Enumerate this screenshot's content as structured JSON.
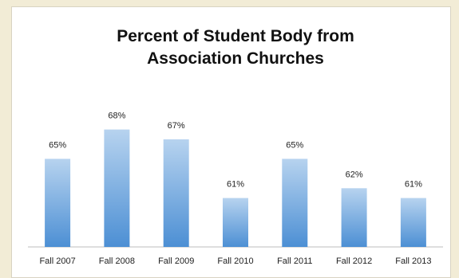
{
  "chart_data": {
    "type": "bar",
    "title": "Percent of Student Body from Association Churches",
    "title_lines": [
      "Percent of Student Body from",
      "Association Churches"
    ],
    "categories": [
      "Fall 2007",
      "Fall 2008",
      "Fall 2009",
      "Fall 2010",
      "Fall 2011",
      "Fall 2012",
      "Fall 2013"
    ],
    "values": [
      65,
      68,
      67,
      61,
      65,
      62,
      61
    ],
    "data_labels": [
      "65%",
      "68%",
      "67%",
      "61%",
      "65%",
      "62%",
      "61%"
    ],
    "xlabel": "",
    "ylabel": "",
    "ylim": [
      56,
      70
    ],
    "grid": false,
    "legend": "none",
    "colors": {
      "bar_top": "#b7d3ef",
      "bar_bottom": "#4c8fd4",
      "background": "#ffffff",
      "page": "#f2ecd6"
    }
  }
}
